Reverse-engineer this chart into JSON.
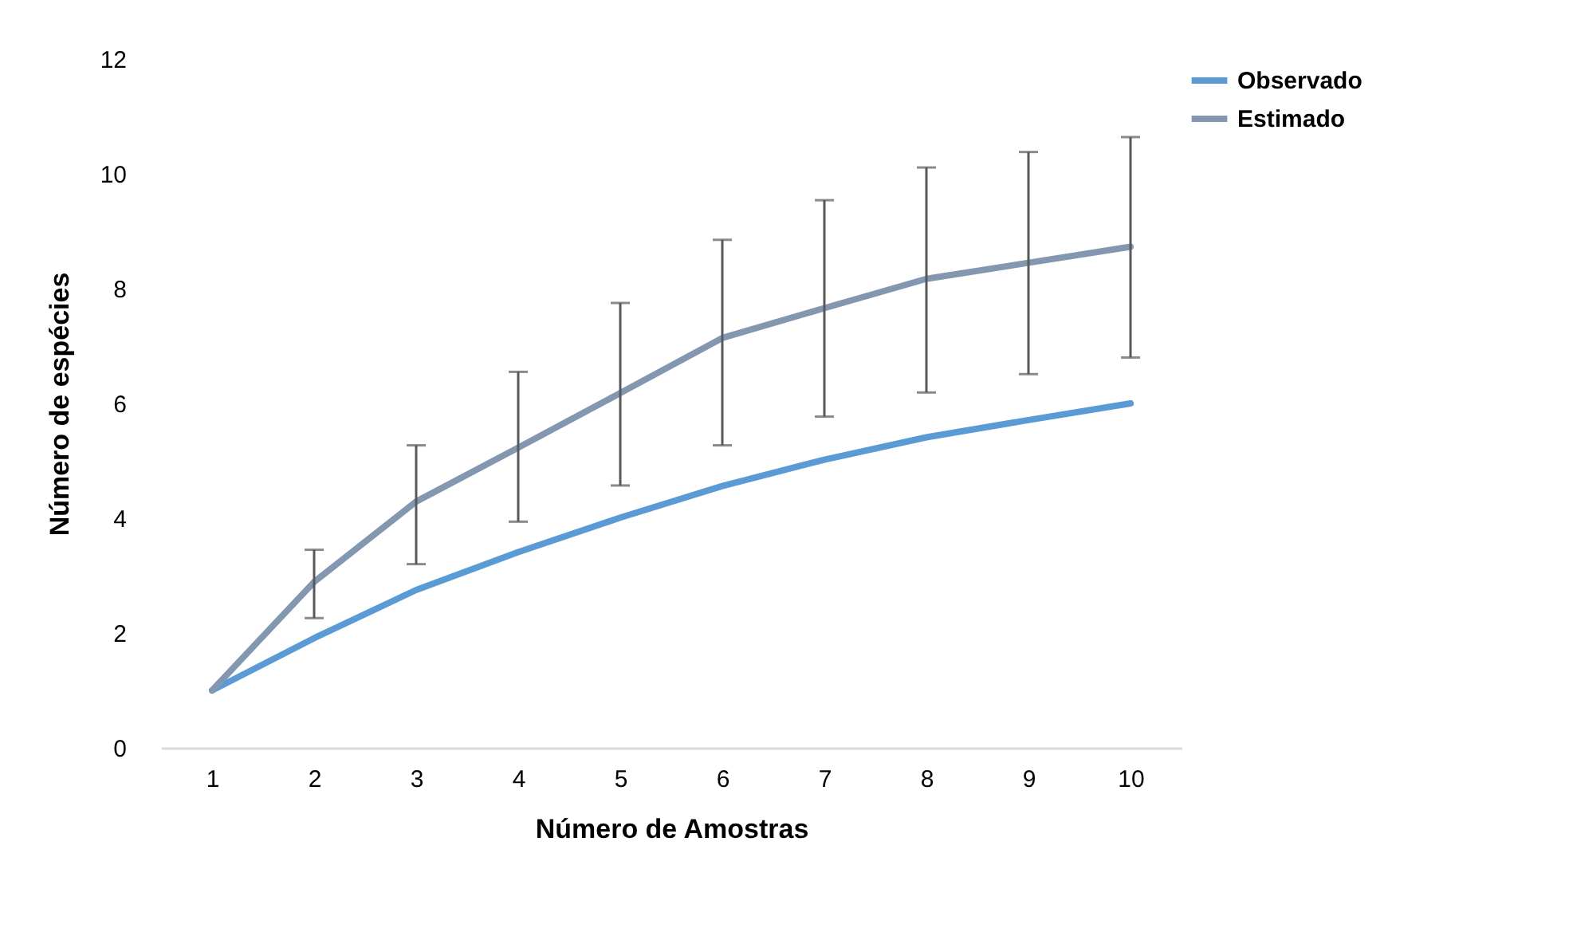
{
  "chart_data": {
    "type": "line",
    "xlabel": "Número de Amostras",
    "ylabel": "Número de espécies",
    "categories": [
      "1",
      "2",
      "3",
      "4",
      "5",
      "6",
      "7",
      "8",
      "9",
      "10"
    ],
    "ylim": [
      0,
      12
    ],
    "yticks": [
      0,
      2,
      4,
      6,
      8,
      10,
      12
    ],
    "legend": "right",
    "series": [
      {
        "name": "Observado",
        "color": "#5b9bd5",
        "values": [
          1,
          1.91,
          2.75,
          3.41,
          4.01,
          4.56,
          5.02,
          5.41,
          5.71,
          6.0
        ]
      },
      {
        "name": "Estimado",
        "color": "#8497b0",
        "values": [
          1,
          2.89,
          4.29,
          5.23,
          6.18,
          7.14,
          7.66,
          8.17,
          8.45,
          8.73
        ],
        "errors": [
          null,
          [
            2.26,
            3.45
          ],
          [
            3.2,
            5.27
          ],
          [
            3.94,
            6.55
          ],
          [
            4.57,
            7.75
          ],
          [
            5.27,
            8.85
          ],
          [
            5.77,
            9.54
          ],
          [
            6.19,
            10.11
          ],
          [
            6.51,
            10.38
          ],
          [
            6.8,
            10.64
          ]
        ]
      }
    ]
  }
}
